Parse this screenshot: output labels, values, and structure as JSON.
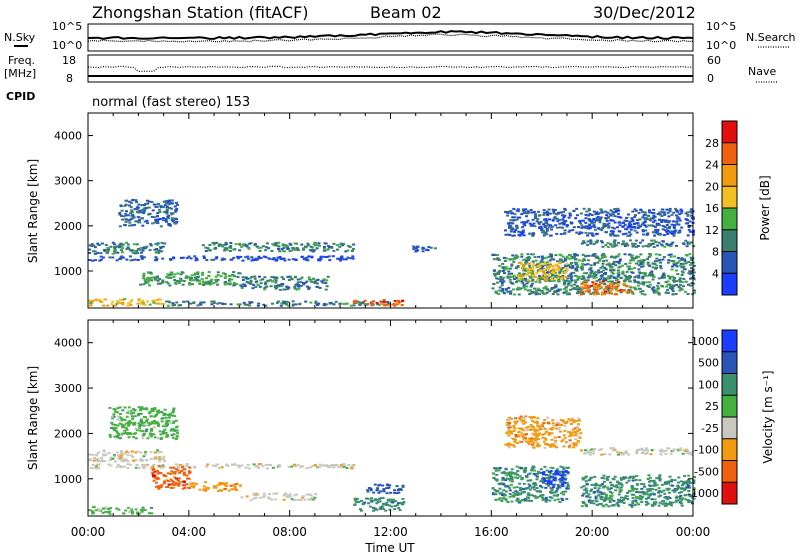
{
  "header": {
    "title": "Zhongshan Station (fitACF)",
    "beam": "Beam 02",
    "date": "30/Dec/2012"
  },
  "status_panels": {
    "nsky_label": "N.Sky",
    "nsearch_label": "N.Search",
    "noise_ticks_left": [
      "10^5",
      "10^0"
    ],
    "noise_ticks_right": [
      "10^5",
      "10^0"
    ],
    "freq_label": "Freq.",
    "freq_unit": "[MHz]",
    "freq_ticks": [
      "18",
      "8"
    ],
    "nave_label": "Nave",
    "nave_ticks": [
      "60",
      "0"
    ],
    "cpid_label": "CPID",
    "cpid_text": "normal (fast stereo) 153"
  },
  "colors": {
    "power": [
      "#1a3dff",
      "#2a55b8",
      "#3a7f6e",
      "#44b040",
      "#f2c020",
      "#f29a10",
      "#f06010",
      "#e01010"
    ],
    "velocity": [
      "#e01010",
      "#f06010",
      "#f29a10",
      "#c8c8c0",
      "#44b040",
      "#3a8f6e",
      "#2a55b8",
      "#1a3dff"
    ]
  },
  "chart_data": [
    {
      "type": "heatmap",
      "panel": "power",
      "ylabel": "Slant Range [km]",
      "ylim": [
        180,
        4500
      ],
      "y_ticks": [
        "1000",
        "2000",
        "3000",
        "4000"
      ],
      "y_tick_values": [
        1000,
        2000,
        3000,
        4000
      ],
      "xlim_hours": [
        0,
        24
      ],
      "colorbar_label": "Power [dB]",
      "colorbar_ticks": [
        "4",
        "8",
        "12",
        "16",
        "20",
        "24",
        "28"
      ],
      "colorbar_range": [
        0,
        32
      ],
      "blobs": [
        {
          "t": [
            0.0,
            3.0
          ],
          "r": [
            1400,
            1650
          ],
          "v": 9
        },
        {
          "t": [
            0.0,
            10.5
          ],
          "r": [
            1250,
            1350
          ],
          "v": 5
        },
        {
          "t": [
            0.0,
            3.0
          ],
          "r": [
            250,
            400
          ],
          "v": 19
        },
        {
          "t": [
            3.0,
            12.0
          ],
          "r": [
            250,
            350
          ],
          "v": 9
        },
        {
          "t": [
            10.5,
            12.5
          ],
          "r": [
            250,
            380
          ],
          "v": 27
        },
        {
          "t": [
            1.2,
            3.5
          ],
          "r": [
            2000,
            2600
          ],
          "v": 7
        },
        {
          "t": [
            4.5,
            10.5
          ],
          "r": [
            1450,
            1650
          ],
          "v": 10
        },
        {
          "t": [
            2.0,
            6.0
          ],
          "r": [
            700,
            1000
          ],
          "v": 12
        },
        {
          "t": [
            6.0,
            9.5
          ],
          "r": [
            600,
            900
          ],
          "v": 9
        },
        {
          "t": [
            16.0,
            24.0
          ],
          "r": [
            500,
            1400
          ],
          "v": 10
        },
        {
          "t": [
            19.5,
            21.5
          ],
          "r": [
            500,
            800
          ],
          "v": 25
        },
        {
          "t": [
            17.0,
            19.0
          ],
          "r": [
            800,
            1200
          ],
          "v": 19
        },
        {
          "t": [
            19.5,
            24.0
          ],
          "r": [
            1550,
            1700
          ],
          "v": 9
        },
        {
          "t": [
            16.5,
            24.0
          ],
          "r": [
            1800,
            2400
          ],
          "v": 6
        },
        {
          "t": [
            12.8,
            13.8
          ],
          "r": [
            1450,
            1600
          ],
          "v": 6
        }
      ]
    },
    {
      "type": "heatmap",
      "panel": "velocity",
      "ylabel": "Slant Range [km]",
      "ylim": [
        180,
        4500
      ],
      "y_ticks": [
        "1000",
        "2000",
        "3000",
        "4000"
      ],
      "y_tick_values": [
        1000,
        2000,
        3000,
        4000
      ],
      "xlim_hours": [
        0,
        24
      ],
      "x_ticks": [
        "00:00",
        "04:00",
        "08:00",
        "12:00",
        "16:00",
        "20:00",
        "00:00"
      ],
      "x_tick_hours": [
        0,
        4,
        8,
        12,
        16,
        20,
        24
      ],
      "xlabel": "Time UT",
      "colorbar_label": "Velocity [m s⁻¹]",
      "colorbar_ticks": [
        "1000",
        "500",
        "100",
        "25",
        "-25",
        "-100",
        "-500",
        "-1000"
      ],
      "blobs": [
        {
          "t": [
            0.0,
            10.5
          ],
          "r": [
            1250,
            1350
          ],
          "v": 3
        },
        {
          "t": [
            0.0,
            3.0
          ],
          "r": [
            1400,
            1650
          ],
          "v": 3
        },
        {
          "t": [
            0.0,
            2.5
          ],
          "r": [
            250,
            400
          ],
          "v": 4
        },
        {
          "t": [
            2.5,
            4.0
          ],
          "r": [
            800,
            1300
          ],
          "v": 1
        },
        {
          "t": [
            4.0,
            6.0
          ],
          "r": [
            750,
            950
          ],
          "v": 2
        },
        {
          "t": [
            6.0,
            9.0
          ],
          "r": [
            550,
            700
          ],
          "v": 3
        },
        {
          "t": [
            10.5,
            12.5
          ],
          "r": [
            300,
            600
          ],
          "v": 5
        },
        {
          "t": [
            11.0,
            12.5
          ],
          "r": [
            700,
            900
          ],
          "v": 6
        },
        {
          "t": [
            16.0,
            19.0
          ],
          "r": [
            500,
            1300
          ],
          "v": 5
        },
        {
          "t": [
            18.0,
            19.0
          ],
          "r": [
            800,
            1200
          ],
          "v": 7
        },
        {
          "t": [
            19.5,
            24.0
          ],
          "r": [
            400,
            1100
          ],
          "v": 5
        },
        {
          "t": [
            19.5,
            24.0
          ],
          "r": [
            1550,
            1700
          ],
          "v": 3
        },
        {
          "t": [
            16.5,
            19.5
          ],
          "r": [
            1700,
            2400
          ],
          "v": 2
        },
        {
          "t": [
            0.8,
            3.5
          ],
          "r": [
            1900,
            2600
          ],
          "v": 4
        }
      ]
    }
  ]
}
